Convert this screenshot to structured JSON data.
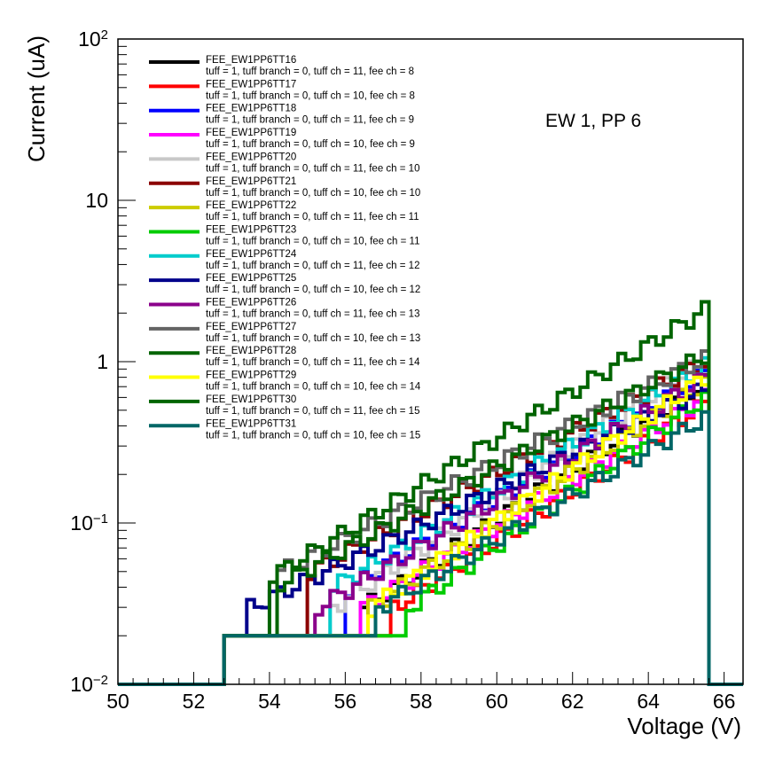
{
  "chart_data": {
    "type": "line",
    "title": "",
    "annotation": "EW 1, PP 6",
    "xlabel": "Voltage (V)",
    "ylabel": "Current (uA)",
    "xlim": [
      50,
      66.5
    ],
    "ylim": [
      0.01,
      100
    ],
    "yscale": "log",
    "x_ticks": [
      "50",
      "52",
      "54",
      "56",
      "58",
      "60",
      "62",
      "64",
      "66"
    ],
    "y_ticks": [
      {
        "base": "10",
        "exp": "−2",
        "value": 0.01
      },
      {
        "base": "10",
        "exp": "−1",
        "value": 0.1
      },
      {
        "base": "1",
        "exp": "",
        "value": 1
      },
      {
        "base": "10",
        "exp": "",
        "value": 10
      },
      {
        "base": "10",
        "exp": "2",
        "value": 100
      }
    ],
    "grid": false,
    "legend_position": "top-left",
    "series": [
      {
        "name": "FEE_EW1PP6TT16",
        "subtitle": "tuff = 1, tuff branch = 0, tuff ch = 11, fee ch = 8",
        "color": "#000000",
        "onset": 56.4,
        "y_start": 0.03,
        "y_end": 0.75
      },
      {
        "name": "FEE_EW1PP6TT17",
        "subtitle": "tuff = 1, tuff branch = 0, tuff ch = 10, fee ch = 8",
        "color": "#ff0000",
        "onset": 57.2,
        "y_start": 0.03,
        "y_end": 0.55
      },
      {
        "name": "FEE_EW1PP6TT18",
        "subtitle": "tuff = 1, tuff branch = 0, tuff ch = 11, fee ch = 9",
        "color": "#0000ff",
        "onset": 56.0,
        "y_start": 0.04,
        "y_end": 0.85
      },
      {
        "name": "FEE_EW1PP6TT19",
        "subtitle": "tuff = 1, tuff branch = 0, tuff ch = 10, fee ch = 9",
        "color": "#ff00ff",
        "onset": 56.4,
        "y_start": 0.03,
        "y_end": 0.6
      },
      {
        "name": "FEE_EW1PP6TT20",
        "subtitle": "tuff = 1, tuff branch = 0, tuff ch = 11, fee ch = 10",
        "color": "#c8c8c8",
        "onset": 55.6,
        "y_start": 0.03,
        "y_end": 1.05
      },
      {
        "name": "FEE_EW1PP6TT21",
        "subtitle": "tuff = 1, tuff branch = 0, tuff ch = 10, fee ch = 10",
        "color": "#8b0000",
        "onset": 55.0,
        "y_start": 0.05,
        "y_end": 1.0
      },
      {
        "name": "FEE_EW1PP6TT22",
        "subtitle": "tuff = 1, tuff branch = 0, tuff ch = 11, fee ch = 11",
        "color": "#cccc00",
        "onset": 56.6,
        "y_start": 0.03,
        "y_end": 0.75
      },
      {
        "name": "FEE_EW1PP6TT23",
        "subtitle": "tuff = 1, tuff branch = 0, tuff ch = 10, fee ch = 11",
        "color": "#00cc00",
        "onset": 57.6,
        "y_start": 0.03,
        "y_end": 0.6
      },
      {
        "name": "FEE_EW1PP6TT24",
        "subtitle": "tuff = 1, tuff branch = 0, tuff ch = 11, fee ch = 12",
        "color": "#00cccc",
        "onset": 55.6,
        "y_start": 0.04,
        "y_end": 0.95
      },
      {
        "name": "FEE_EW1PP6TT25",
        "subtitle": "tuff = 1, tuff branch = 0, tuff ch = 10, fee ch = 12",
        "color": "#00008b",
        "onset": 53.4,
        "y_start": 0.03,
        "y_end": 0.68
      },
      {
        "name": "FEE_EW1PP6TT26",
        "subtitle": "tuff = 1, tuff branch = 0, tuff ch = 11, fee ch = 13",
        "color": "#8b008b",
        "onset": 55.2,
        "y_start": 0.03,
        "y_end": 0.8
      },
      {
        "name": "FEE_EW1PP6TT27",
        "subtitle": "tuff = 1, tuff branch = 0, tuff ch = 10, fee ch = 13",
        "color": "#646464",
        "onset": 54.2,
        "y_start": 0.05,
        "y_end": 1.05
      },
      {
        "name": "FEE_EW1PP6TT28",
        "subtitle": "tuff = 1, tuff branch = 0, tuff ch = 11, fee ch = 14",
        "color": "#006400",
        "onset": 54.0,
        "y_start": 0.04,
        "y_end": 1.1
      },
      {
        "name": "FEE_EW1PP6TT29",
        "subtitle": "tuff = 1, tuff branch = 0, tuff ch = 10, fee ch = 14",
        "color": "#ffff00",
        "onset": 56.6,
        "y_start": 0.03,
        "y_end": 0.8
      },
      {
        "name": "FEE_EW1PP6TT30",
        "subtitle": "tuff = 1, tuff branch = 0, tuff ch = 11, fee ch = 15",
        "color": "#006400",
        "onset": 54.2,
        "y_start": 0.05,
        "y_end": 2.1
      },
      {
        "name": "FEE_EW1PP6TT31",
        "subtitle": "tuff = 1, tuff branch = 0, tuff ch = 10, fee ch = 15",
        "color": "#006666",
        "onset": 56.8,
        "y_start": 0.03,
        "y_end": 0.45
      }
    ],
    "baseline_before_x": 52.8,
    "baseline_value": 0.01,
    "plateau_value": 0.02,
    "cutoff_x": 65.6
  }
}
